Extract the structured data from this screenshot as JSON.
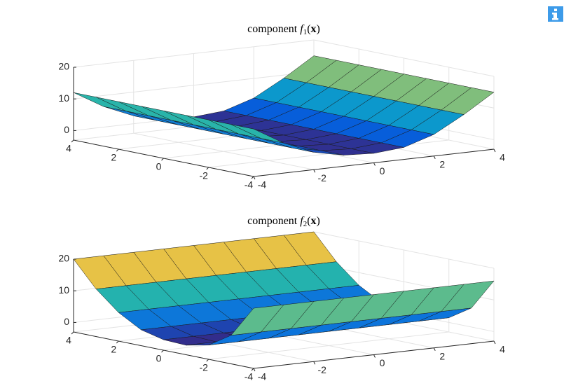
{
  "chart_data": [
    {
      "type": "surface",
      "title": [
        "component",
        "f",
        "1",
        "(",
        "x",
        ")"
      ],
      "x": [
        -4,
        -3,
        -2,
        -1,
        0,
        1,
        2,
        3,
        4
      ],
      "y": [
        -4,
        -3,
        -2,
        -1,
        0,
        1,
        2,
        3,
        4
      ],
      "z": [
        [
          12,
          6.5,
          2.5,
          0.5,
          0,
          0.8,
          3.8,
          9,
          15
        ],
        [
          12,
          6.5,
          2.5,
          0.5,
          0,
          0.8,
          3.8,
          9,
          15
        ],
        [
          12,
          6.5,
          2.5,
          0.5,
          0,
          0.8,
          3.8,
          9,
          15
        ],
        [
          12,
          6.5,
          2.5,
          0.5,
          0,
          0.8,
          3.8,
          9,
          15
        ],
        [
          12,
          6.5,
          2.5,
          0.5,
          0,
          0.8,
          3.8,
          9,
          15
        ],
        [
          12,
          6.5,
          2.5,
          0.5,
          0,
          0.8,
          3.8,
          9,
          15
        ],
        [
          12,
          6.5,
          2.5,
          0.5,
          0,
          0.8,
          3.8,
          9,
          15
        ],
        [
          12,
          6.5,
          2.5,
          0.5,
          0,
          0.8,
          3.8,
          9,
          15
        ],
        [
          12,
          6.5,
          2.5,
          0.5,
          0,
          0.8,
          3.8,
          9,
          15
        ]
      ],
      "xlim": [
        -4,
        4
      ],
      "ylim": [
        -4,
        4
      ],
      "zlim": [
        -3,
        20
      ],
      "xticks": [
        -4,
        -2,
        0,
        2,
        4
      ],
      "yticks": [
        -4,
        -2,
        0,
        2,
        4
      ],
      "zticks": [
        0,
        10,
        20
      ],
      "grid": true,
      "clim": [
        0,
        20
      ],
      "colormap": [
        "#352a87",
        "#0363e1",
        "#1485d4",
        "#06a7c6",
        "#38b99e",
        "#92bf73",
        "#d9ba56",
        "#fcce2e",
        "#f9fb0e"
      ]
    },
    {
      "type": "surface",
      "title": [
        "component",
        "f",
        "2",
        "(",
        "x",
        ")"
      ],
      "x": [
        -4,
        -3,
        -2,
        -1,
        0,
        1,
        2,
        3,
        4
      ],
      "y": [
        -4,
        -3,
        -2,
        -1,
        0,
        1,
        2,
        3,
        4
      ],
      "z": [
        [
          16,
          16,
          16,
          16,
          16,
          16,
          16,
          16,
          16
        ],
        [
          6,
          6,
          6,
          6,
          6,
          6,
          6,
          6,
          6
        ],
        [
          1.5,
          1.5,
          1.5,
          1.5,
          1.5,
          1.5,
          1.5,
          1.5,
          1.5
        ],
        [
          0,
          0,
          0,
          0,
          0,
          0,
          0,
          0,
          0
        ],
        [
          0.3,
          0.3,
          0.3,
          0.3,
          0.3,
          0.3,
          0.3,
          0.3,
          0.3
        ],
        [
          2,
          2,
          2,
          2,
          2,
          2,
          2,
          2,
          2
        ],
        [
          6,
          6,
          6,
          6,
          6,
          6,
          6,
          6,
          6
        ],
        [
          12,
          12,
          12,
          12,
          12,
          12,
          12,
          12,
          12
        ],
        [
          20,
          20,
          20,
          20,
          20,
          20,
          20,
          20,
          20
        ]
      ],
      "xlim": [
        -4,
        4
      ],
      "ylim": [
        -4,
        4
      ],
      "zlim": [
        -3,
        20
      ],
      "xticks": [
        -4,
        -2,
        0,
        2,
        4
      ],
      "yticks": [
        -4,
        -2,
        0,
        2,
        4
      ],
      "zticks": [
        0,
        10,
        20
      ],
      "grid": true,
      "clim": [
        0,
        20
      ],
      "colormap": [
        "#352a87",
        "#0363e1",
        "#1485d4",
        "#06a7c6",
        "#38b99e",
        "#92bf73",
        "#d9ba56",
        "#fcce2e",
        "#f9fb0e"
      ]
    }
  ]
}
